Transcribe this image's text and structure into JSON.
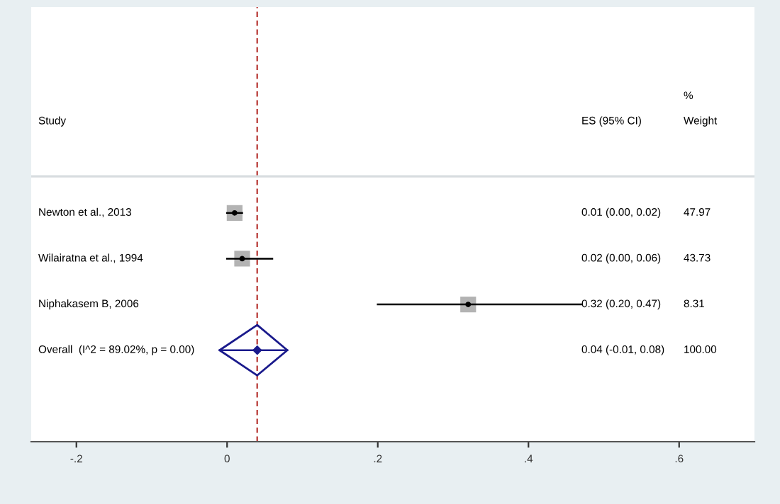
{
  "chart_data": {
    "type": "scatter",
    "orientation": "horizontal",
    "categories": [
      "Newton et al., 2013",
      "Wilairatna et al., 1994",
      "Niphakasem B, 2006",
      "Overall  (I^2 = 89.02%, p = 0.00)"
    ],
    "series": [
      {
        "color": "#000000",
        "marker": "square",
        "values": [
          0.01,
          0.02,
          0.32,
          null
        ],
        "errors": [
          [
            0.0,
            0.02
          ],
          [
            0.0,
            0.06
          ],
          [
            0.2,
            0.47
          ],
          null
        ]
      },
      {
        "color": "#1a1a8c",
        "marker": "diamond",
        "values": [
          null,
          null,
          null,
          0.04
        ],
        "errors": [
          null,
          null,
          null,
          [
            -0.01,
            0.08
          ]
        ]
      }
    ],
    "xlim": [
      -0.26,
      0.7
    ],
    "xticks": [
      {
        "value": -0.2,
        "label": "-.2"
      },
      {
        "value": 0,
        "label": "0"
      },
      {
        "value": 0.2,
        "label": ".2"
      },
      {
        "value": 0.4,
        "label": ".4"
      },
      {
        "value": 0.6,
        "label": ".6"
      }
    ],
    "ref_lines": [
      {
        "axis": "x",
        "value": 0.04,
        "color": "#c0504d",
        "line_style": "dashed"
      }
    ],
    "annotations": [
      "Study",
      "ES (95% CI)",
      "%",
      "Weight",
      "0.01 (0.00, 0.02)",
      "0.02 (0.00, 0.06)",
      "0.32 (0.20, 0.47)",
      "0.04 (-0.01, 0.08)",
      "47.97",
      "43.73",
      "8.31",
      "100.00"
    ],
    "grid": false,
    "legend": false
  }
}
